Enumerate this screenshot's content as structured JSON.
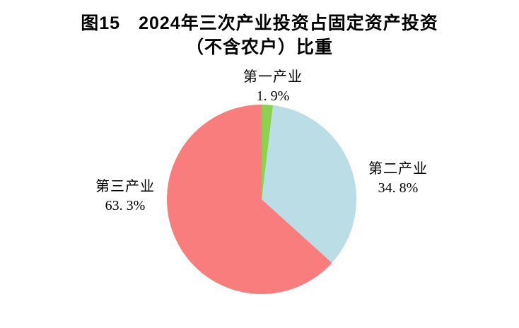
{
  "figure": {
    "title_line1": "图15　2024年三次产业投资占固定资产投资",
    "title_line2": "（不含农户）比重"
  },
  "chart_data": {
    "type": "pie",
    "title": "图15　2024年三次产业投资占固定资产投资（不含农户）比重",
    "start_angle_deg": 0,
    "direction": "clockwise",
    "legend_position": "none",
    "background_color": "#ffffff",
    "categories": [
      "第一产业",
      "第二产业",
      "第三产业"
    ],
    "values": [
      1.9,
      34.8,
      63.3
    ],
    "slices": [
      {
        "label": "第一产业",
        "value": 1.9,
        "display_value": "1. 9%",
        "color": "#8CD14F"
      },
      {
        "label": "第二产业",
        "value": 34.8,
        "display_value": "34. 8%",
        "color": "#BBDDE6"
      },
      {
        "label": "第三产业",
        "value": 63.3,
        "display_value": "63. 3%",
        "color": "#FA7D7D"
      }
    ]
  }
}
